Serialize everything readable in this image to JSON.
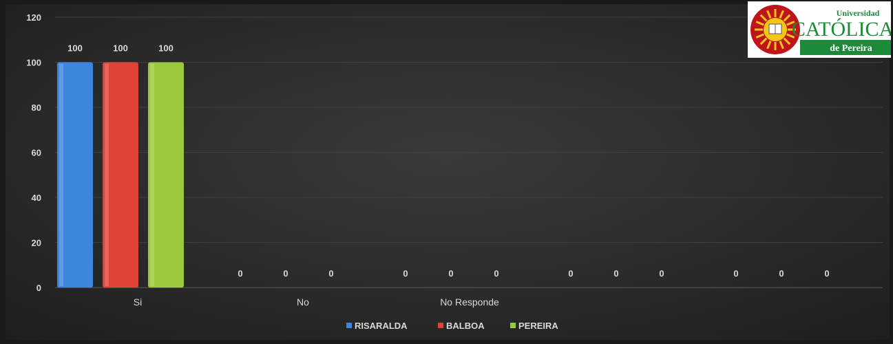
{
  "colors": {
    "background": "#2f2f2f",
    "grid": "#3f3f3f",
    "text": "#d9d9d9",
    "RISARALDA": "#3d86e0",
    "BALBOA": "#e04438",
    "PEREIRA": "#9bc83c"
  },
  "logo": {
    "line1": "Universidad",
    "line2": "CATÓLICA",
    "line3": "de Pereira",
    "brand_color": "#c0141b",
    "band_color": "#1d8a3a"
  },
  "chart_data": {
    "type": "bar",
    "categories": [
      "Si",
      "No",
      "No Responde",
      "",
      ""
    ],
    "series": [
      {
        "name": "RISARALDA",
        "values": [
          100,
          0,
          0,
          0,
          0
        ]
      },
      {
        "name": "BALBOA",
        "values": [
          100,
          0,
          0,
          0,
          0
        ]
      },
      {
        "name": "PEREIRA",
        "values": [
          100,
          0,
          0,
          0,
          0
        ]
      }
    ],
    "data_labels": [
      [
        "100",
        "100",
        "100"
      ],
      [
        "0",
        "0",
        "0"
      ],
      [
        "0",
        "0",
        "0"
      ],
      [
        "0",
        "0",
        "0"
      ],
      [
        "0",
        "0",
        "0"
      ]
    ],
    "yticks": [
      "0",
      "20",
      "40",
      "60",
      "80",
      "100",
      "120"
    ],
    "ylim": [
      0,
      120
    ],
    "grid": true,
    "legend_position": "bottom"
  }
}
